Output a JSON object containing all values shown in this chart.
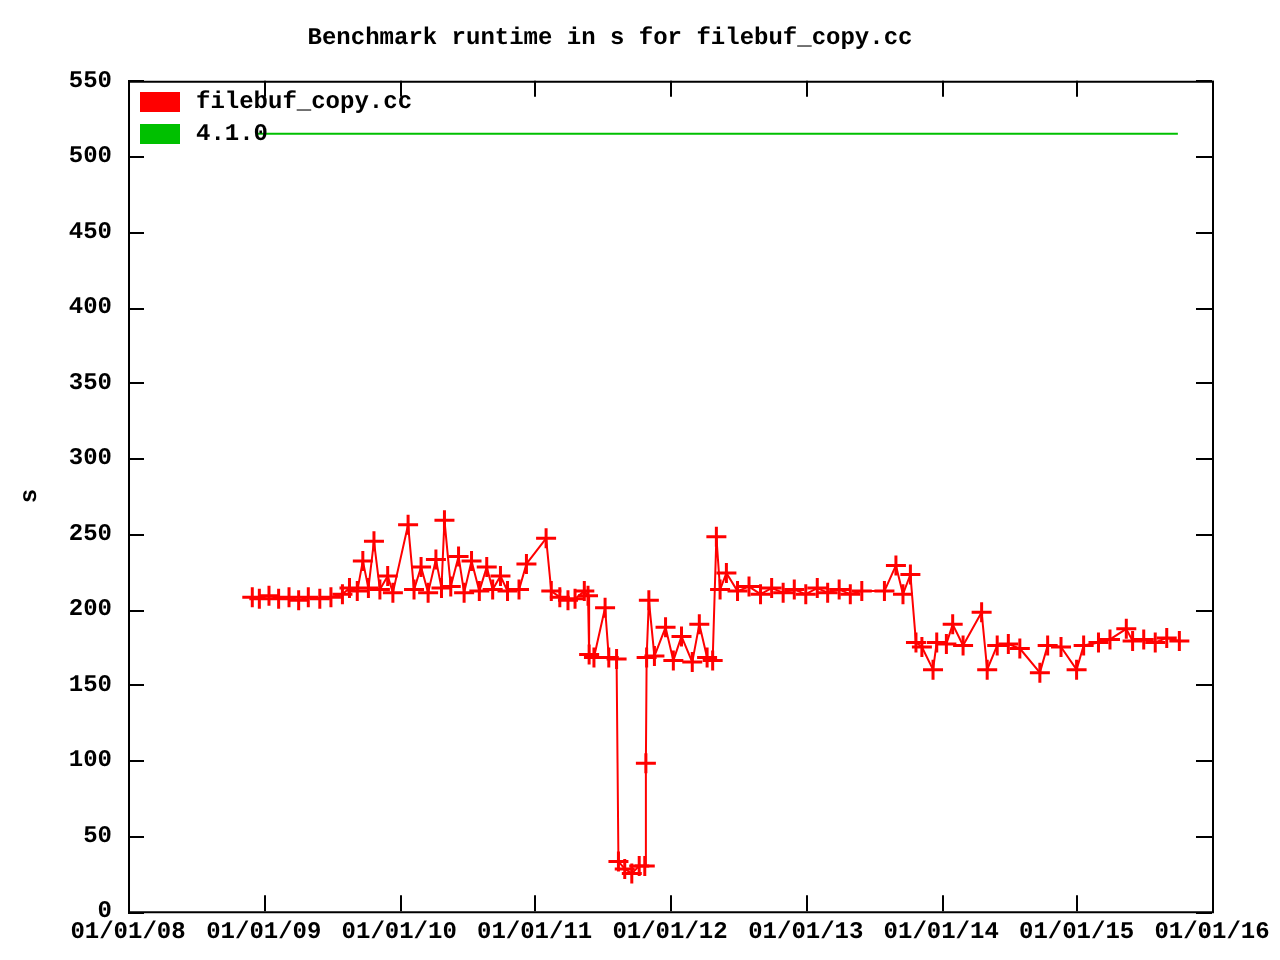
{
  "chart_data": {
    "type": "line",
    "title": "Benchmark runtime in s for filebuf_copy.cc",
    "ylabel": "s",
    "xlim": [
      "2008-01-01",
      "2016-01-01"
    ],
    "xticks": [
      {
        "value": "2008-01-01",
        "label": "01/01/08"
      },
      {
        "value": "2009-01-01",
        "label": "01/01/09"
      },
      {
        "value": "2010-01-01",
        "label": "01/01/10"
      },
      {
        "value": "2011-01-01",
        "label": "01/01/11"
      },
      {
        "value": "2012-01-01",
        "label": "01/01/12"
      },
      {
        "value": "2013-01-01",
        "label": "01/01/13"
      },
      {
        "value": "2014-01-01",
        "label": "01/01/14"
      },
      {
        "value": "2015-01-01",
        "label": "01/01/15"
      },
      {
        "value": "2016-01-01",
        "label": "01/01/16"
      }
    ],
    "ylim": [
      0,
      550
    ],
    "yticks": [
      0,
      50,
      100,
      150,
      200,
      250,
      300,
      350,
      400,
      450,
      500,
      550
    ],
    "legend": "top left",
    "series": [
      {
        "name": "filebuf_copy.cc",
        "color": "#ff0000",
        "marker": "cross",
        "x": [
          "2008-12-01",
          "2008-12-20",
          "2009-01-15",
          "2009-02-10",
          "2009-03-10",
          "2009-04-05",
          "2009-05-01",
          "2009-06-01",
          "2009-07-01",
          "2009-08-01",
          "2009-08-20",
          "2009-09-10",
          "2009-09-25",
          "2009-10-10",
          "2009-10-25",
          "2009-11-10",
          "2009-12-01",
          "2009-12-15",
          "2010-01-25",
          "2010-02-10",
          "2010-03-01",
          "2010-03-20",
          "2010-04-10",
          "2010-04-25",
          "2010-05-03",
          "2010-05-20",
          "2010-06-10",
          "2010-06-25",
          "2010-07-15",
          "2010-08-05",
          "2010-08-25",
          "2010-09-10",
          "2010-10-01",
          "2010-10-20",
          "2010-11-20",
          "2010-12-10",
          "2011-02-01",
          "2011-02-15",
          "2011-03-10",
          "2011-04-01",
          "2011-04-20",
          "2011-05-15",
          "2011-05-25",
          "2011-05-28",
          "2011-06-10",
          "2011-07-10",
          "2011-07-20",
          "2011-08-10",
          "2011-08-15",
          "2011-09-01",
          "2011-09-20",
          "2011-10-10",
          "2011-10-25",
          "2011-10-28",
          "2011-10-30",
          "2011-11-05",
          "2011-11-20",
          "2011-12-20",
          "2012-01-10",
          "2012-02-01",
          "2012-03-01",
          "2012-03-20",
          "2012-04-10",
          "2012-04-25",
          "2012-05-05",
          "2012-05-15",
          "2012-06-01",
          "2012-07-01",
          "2012-08-01",
          "2012-09-01",
          "2012-10-01",
          "2012-11-01",
          "2012-12-01",
          "2013-01-01",
          "2013-02-01",
          "2013-03-01",
          "2013-04-01",
          "2013-05-01",
          "2013-06-01",
          "2013-08-01",
          "2013-09-01",
          "2013-09-20",
          "2013-10-10",
          "2013-10-25",
          "2013-11-10",
          "2013-12-10",
          "2013-12-20",
          "2014-01-15",
          "2014-02-01",
          "2014-03-01",
          "2014-04-20",
          "2014-05-05",
          "2014-06-01",
          "2014-07-01",
          "2014-08-01",
          "2014-09-24",
          "2014-10-15",
          "2014-11-20",
          "2015-01-01",
          "2015-01-20",
          "2015-03-01",
          "2015-04-01",
          "2015-05-15",
          "2015-06-01",
          "2015-07-01",
          "2015-08-01",
          "2015-09-01",
          "2015-10-05"
        ],
        "values": [
          208,
          207,
          209,
          207,
          208,
          206,
          208,
          207,
          208,
          210,
          214,
          212,
          232,
          214,
          245,
          213,
          222,
          211,
          256,
          213,
          228,
          211,
          233,
          214,
          259,
          215,
          235,
          211,
          232,
          212,
          228,
          213,
          222,
          212,
          213,
          230,
          247,
          212,
          208,
          206,
          207,
          212,
          209,
          170,
          168,
          201,
          168,
          167,
          33,
          28,
          25,
          30,
          30,
          98,
          168,
          206,
          169,
          188,
          166,
          182,
          165,
          190,
          168,
          166,
          248,
          213,
          224,
          212,
          215,
          210,
          214,
          211,
          213,
          210,
          214,
          211,
          213,
          210,
          212,
          212,
          229,
          210,
          223,
          178,
          175,
          160,
          178,
          177,
          190,
          176,
          198,
          160,
          176,
          177,
          174,
          158,
          176,
          175,
          160,
          176,
          178,
          180,
          187,
          179,
          180,
          178,
          181,
          179
        ]
      },
      {
        "name": "4.1.0",
        "color": "#00c000",
        "marker": "none",
        "x": [
          "2008-12-13",
          "2015-10-01"
        ],
        "values": [
          515,
          515
        ]
      }
    ]
  }
}
